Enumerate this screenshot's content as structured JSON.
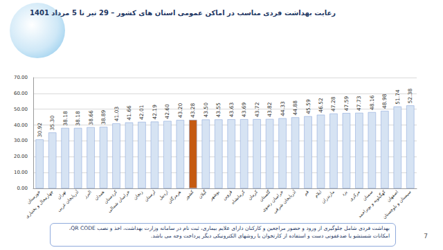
{
  "chart_data": {
    "type": "bar",
    "title": "رعایت بهداشت فردی مناسب در اماکن عمومی استان های کشور – 29 تیر تا 5 مرداد 1401",
    "categories": [
      "خوزستان",
      "چهارمحال و بختیاری",
      "تهران",
      "آذربایجان غربی",
      "البرز",
      "همدان",
      "کردستان",
      "خراسان شمالی",
      "زنجان",
      "لرستان",
      "اردبیل",
      "هرمزگان",
      "کشور",
      "گیلان",
      "بوشهر",
      "قزوین",
      "کرمانشاه",
      "کرمان",
      "گلستان",
      "خراسان رضوی",
      "آذربایجان شرقی",
      "قم",
      "ایلام",
      "مازندران",
      "یزد",
      "مرکزی",
      "سمنان",
      "کهگیلویه و بویراحمد",
      "اصفهان",
      "سیستان و بلوچستان"
    ],
    "values": [
      30.92,
      35.3,
      38.18,
      38.18,
      38.66,
      38.89,
      41.03,
      41.66,
      42.01,
      42.19,
      42.6,
      43.2,
      43.28,
      43.5,
      43.55,
      43.63,
      43.69,
      43.72,
      43.82,
      44.33,
      44.88,
      45.59,
      46.52,
      47.28,
      47.59,
      47.73,
      48.16,
      48.98,
      51.74,
      52.38
    ],
    "value_labels": [
      "30.92",
      "35.30",
      "38.18",
      "38.18",
      "38.66",
      "38.89",
      "41.03",
      "41.66",
      "42.01",
      "42.19",
      "42.60",
      "43.20",
      "43.28",
      "43.50",
      "43.55",
      "43.63",
      "43.69",
      "43.72",
      "43.82",
      "44.33",
      "44.88",
      "45.59",
      "46.52",
      "47.28",
      "47.59",
      "47.73",
      "48.16",
      "48.98",
      "51.74",
      "52.38"
    ],
    "colors": [
      "#d6e3f3",
      "#d6e3f3",
      "#d6e3f3",
      "#d6e3f3",
      "#d6e3f3",
      "#d6e3f3",
      "#d6e3f3",
      "#d6e3f3",
      "#d6e3f3",
      "#d6e3f3",
      "#d6e3f3",
      "#d6e3f3",
      "#c55a11",
      "#d6e3f3",
      "#d6e3f3",
      "#d6e3f3",
      "#d6e3f3",
      "#d6e3f3",
      "#d6e3f3",
      "#d6e3f3",
      "#d6e3f3",
      "#d6e3f3",
      "#d6e3f3",
      "#d6e3f3",
      "#d6e3f3",
      "#d6e3f3",
      "#d6e3f3",
      "#d6e3f3",
      "#d6e3f3",
      "#d6e3f3"
    ],
    "ylim": [
      0,
      70
    ],
    "yticks": [
      {
        "value": 0,
        "label": "0.00"
      },
      {
        "value": 10,
        "label": "10.00"
      },
      {
        "value": 20,
        "label": "20.00"
      },
      {
        "value": 30,
        "label": "30.00"
      },
      {
        "value": 40,
        "label": "40.00"
      },
      {
        "value": 50,
        "label": "50.00"
      },
      {
        "value": 60,
        "label": "60.00"
      },
      {
        "value": 70,
        "label": "70.00"
      }
    ],
    "grid": true,
    "data_labels": true
  },
  "footnote": "بهداشت فردی شامل جلوگیری از ورود و حضور مراجعین و کارکنان دارای علایم بیماری، ثبت نام در سامانه وزارت بهداشت، اخذ و نصب QR CODE، امکانات شستشو یا ضدعفونی دست و استفاده از کارتخوان یا روشهای الکترونیکی دیگر پرداخت وجه می باشد.",
  "page_number": "7"
}
